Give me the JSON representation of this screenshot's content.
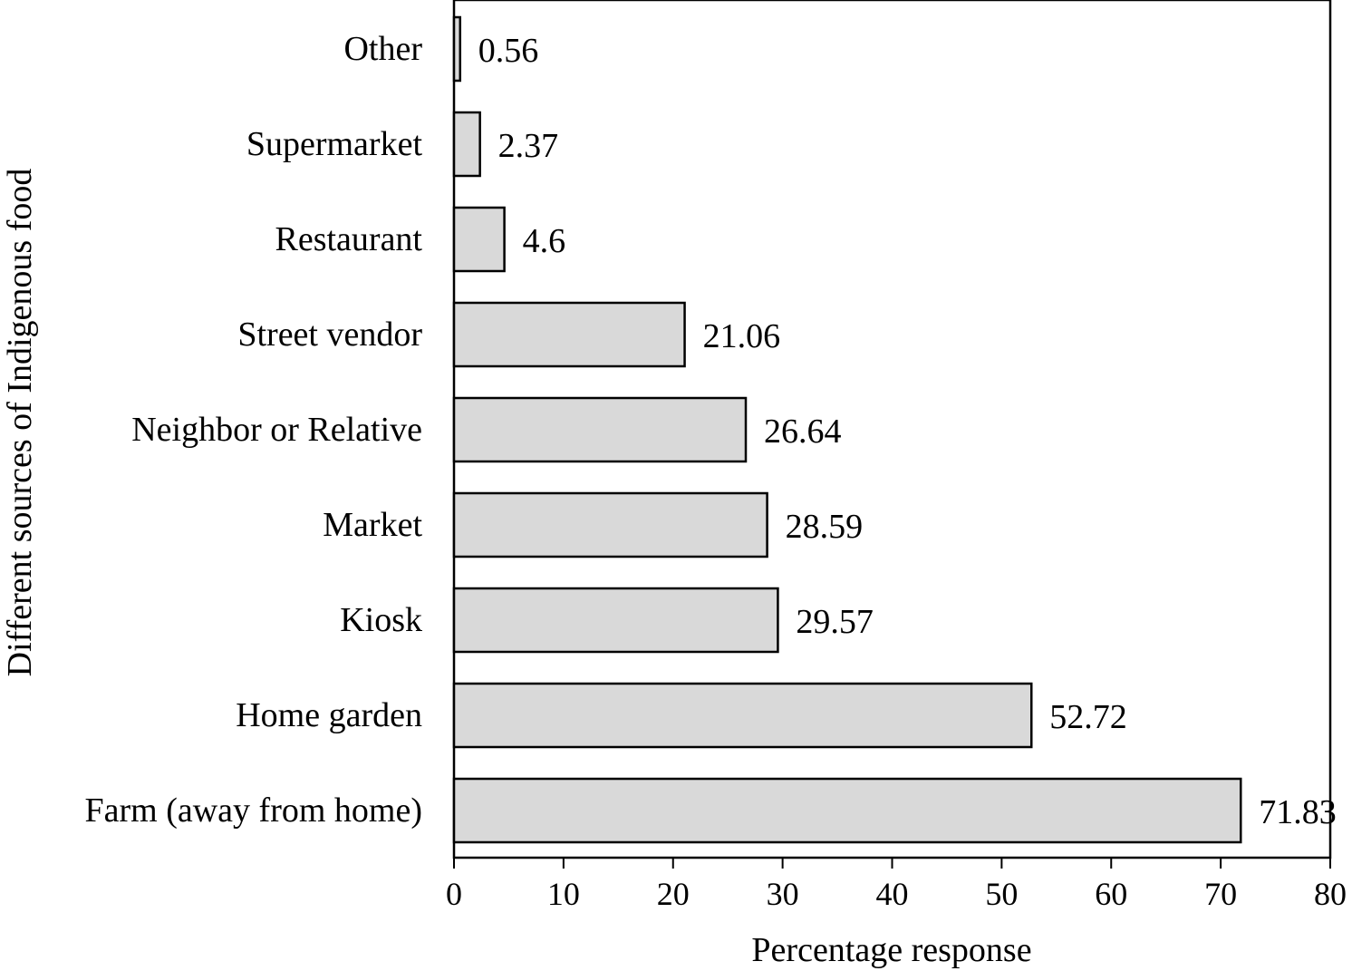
{
  "chart_data": {
    "type": "bar",
    "orientation": "horizontal",
    "categories": [
      "Other",
      "Supermarket",
      "Restaurant",
      "Street vendor",
      "Neighbor or Relative",
      "Market",
      "Kiosk",
      "Home garden",
      "Farm (away from home)"
    ],
    "values": [
      0.56,
      2.37,
      4.6,
      21.06,
      26.64,
      28.59,
      29.57,
      52.72,
      71.83
    ],
    "value_labels": [
      "0.56",
      "2.37",
      "4.6",
      "21.06",
      "26.64",
      "28.59",
      "29.57",
      "52.72",
      "71.83"
    ],
    "xlabel": "Percentage response",
    "ylabel": "Different sources of Indigenous food",
    "xlim": [
      0,
      80
    ],
    "xticks": [
      0,
      10,
      20,
      30,
      40,
      50,
      60,
      70,
      80
    ],
    "grid": false,
    "legend": "none",
    "bar_color": "#d9d9d9",
    "bar_edge_color": "#000000"
  }
}
